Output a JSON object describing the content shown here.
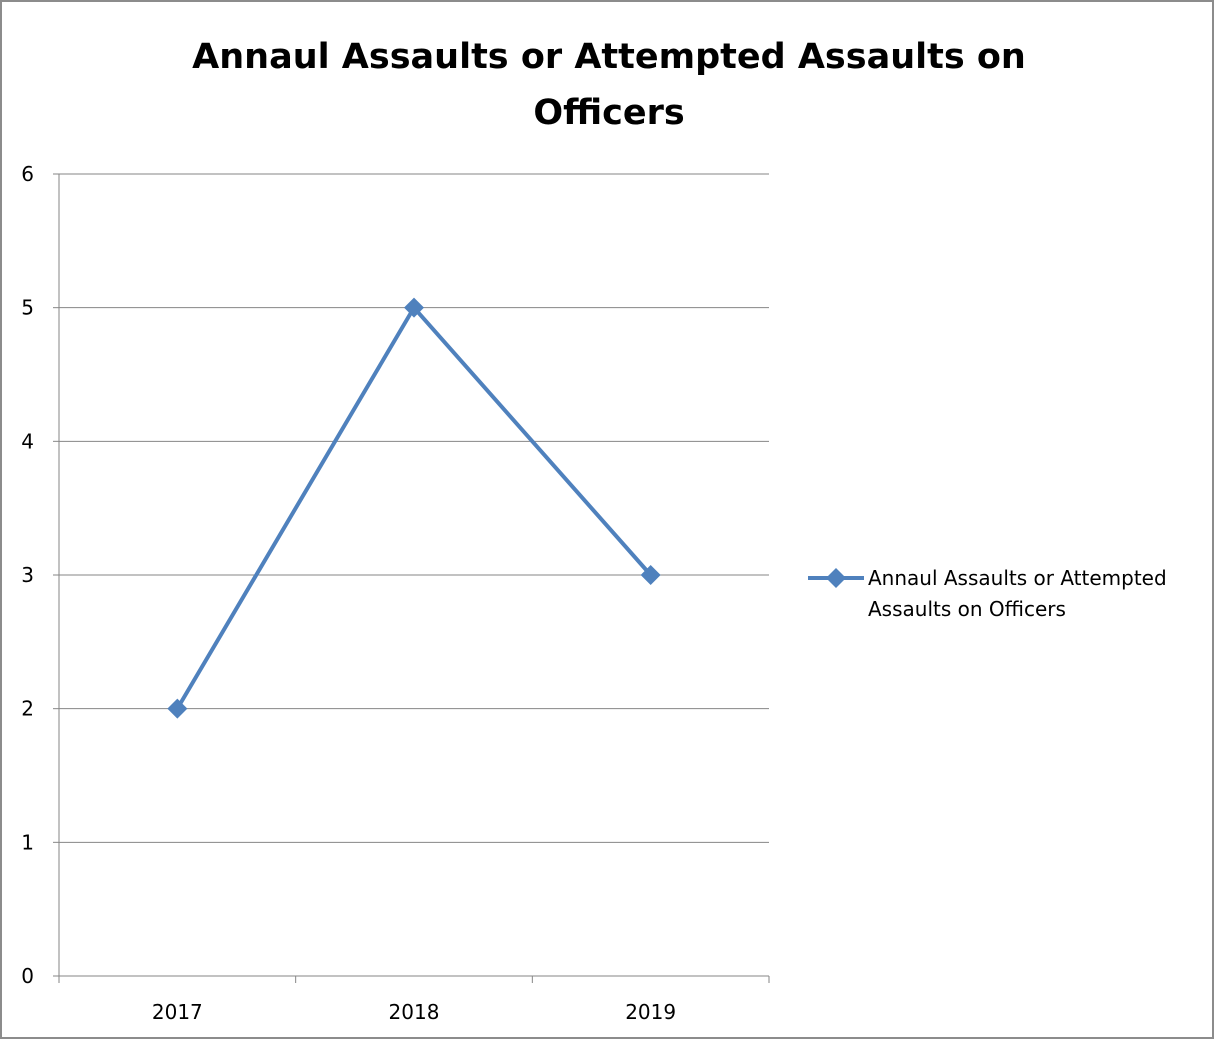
{
  "chart_data": {
    "type": "line",
    "title_lines": [
      "Annaul Assaults or Attempted Assaults on",
      "Officers"
    ],
    "categories": [
      "2017",
      "2018",
      "2019"
    ],
    "series": [
      {
        "name": "Annaul Assaults or Attempted Assaults on Officers",
        "legend_lines": [
          "Annaul Assaults or Attempted",
          "Assaults on Officers"
        ],
        "values": [
          2,
          5,
          3
        ],
        "color": "#4f81bd",
        "marker": "diamond"
      }
    ],
    "ylim": [
      0,
      6
    ],
    "yticks": [
      0,
      1,
      2,
      3,
      4,
      5,
      6
    ],
    "grid": true,
    "legend_position": "right",
    "gridline_color": "#868686",
    "axis_color": "#868686"
  }
}
